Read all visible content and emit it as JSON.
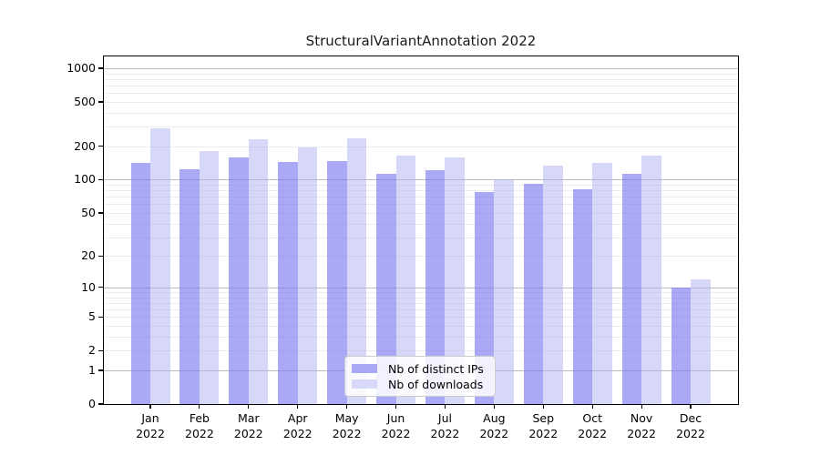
{
  "title": "StructuralVariantAnnotation 2022",
  "chart_data": {
    "type": "bar",
    "title": "StructuralVariantAnnotation 2022",
    "categories": [
      "Jan",
      "Feb",
      "Mar",
      "Apr",
      "May",
      "Jun",
      "Jul",
      "Aug",
      "Sep",
      "Oct",
      "Nov",
      "Dec"
    ],
    "year_label": "2022",
    "series": [
      {
        "name": "Nb of distinct IPs",
        "color": "rgba(120,120,240,0.64)",
        "solid_color": "#a8a8f5",
        "values": [
          142,
          125,
          158,
          145,
          148,
          112,
          122,
          78,
          92,
          82,
          112,
          10
        ]
      },
      {
        "name": "Nb of downloads",
        "color": "rgba(176,176,242,0.5)",
        "solid_color": "#d8d8f8",
        "values": [
          290,
          180,
          230,
          197,
          236,
          165,
          160,
          100,
          135,
          142,
          166,
          12
        ]
      }
    ],
    "yscale": "log1p",
    "yticks": [
      0,
      1,
      2,
      5,
      10,
      20,
      50,
      100,
      200,
      500,
      1000
    ],
    "ylim": [
      0,
      1300
    ],
    "major_gridlines": [
      1,
      10,
      100,
      1000
    ],
    "minor_gridlines": [
      2,
      3,
      4,
      5,
      6,
      7,
      8,
      9,
      20,
      30,
      40,
      50,
      60,
      70,
      80,
      90,
      200,
      300,
      400,
      500,
      600,
      700,
      800,
      900
    ],
    "grid": true,
    "legend_position": "bottom-center",
    "xlabel": "",
    "ylabel": ""
  }
}
